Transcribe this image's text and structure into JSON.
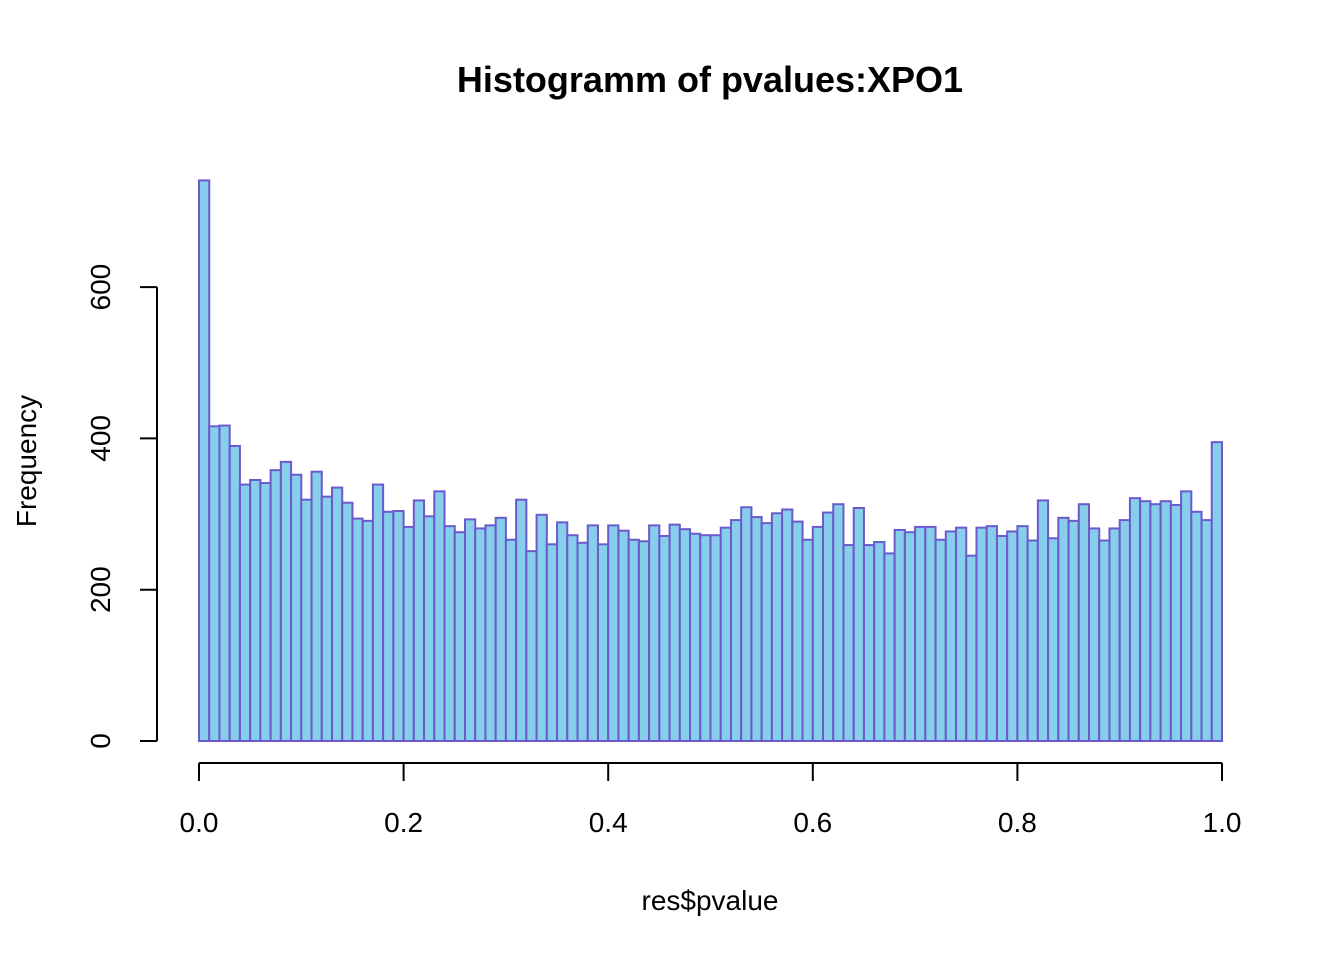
{
  "chart_data": {
    "type": "bar",
    "title": "Histogramm of pvalues:XPO1",
    "xlabel": "res$pvalue",
    "ylabel": "Frequency",
    "xlim": [
      0,
      1
    ],
    "ylim": [
      0,
      740
    ],
    "bin_width": 0.01,
    "x_ticks": [
      "0.0",
      "0.2",
      "0.4",
      "0.6",
      "0.8",
      "1.0"
    ],
    "x_tick_values": [
      0,
      0.2,
      0.4,
      0.6,
      0.8,
      1.0
    ],
    "y_ticks": [
      "0",
      "200",
      "400",
      "600"
    ],
    "y_tick_values": [
      0,
      200,
      400,
      600
    ],
    "grid": false,
    "colors": {
      "bar_fill": "#87ceeb",
      "bar_border": "#6a5acd"
    },
    "values": [
      741,
      416,
      417,
      390,
      339,
      345,
      341,
      358,
      369,
      352,
      319,
      356,
      323,
      335,
      315,
      294,
      291,
      339,
      303,
      304,
      283,
      318,
      297,
      330,
      284,
      276,
      293,
      281,
      285,
      295,
      266,
      319,
      251,
      299,
      260,
      289,
      272,
      262,
      285,
      260,
      285,
      278,
      266,
      264,
      285,
      271,
      286,
      280,
      274,
      272,
      272,
      282,
      292,
      309,
      296,
      288,
      301,
      306,
      290,
      266,
      283,
      302,
      313,
      259,
      308,
      259,
      263,
      248,
      279,
      276,
      283,
      283,
      266,
      277,
      282,
      245,
      282,
      284,
      271,
      277,
      284,
      265,
      318,
      268,
      295,
      291,
      313,
      281,
      265,
      281,
      292,
      321,
      317,
      313,
      317,
      312,
      330,
      303,
      292,
      395
    ]
  }
}
